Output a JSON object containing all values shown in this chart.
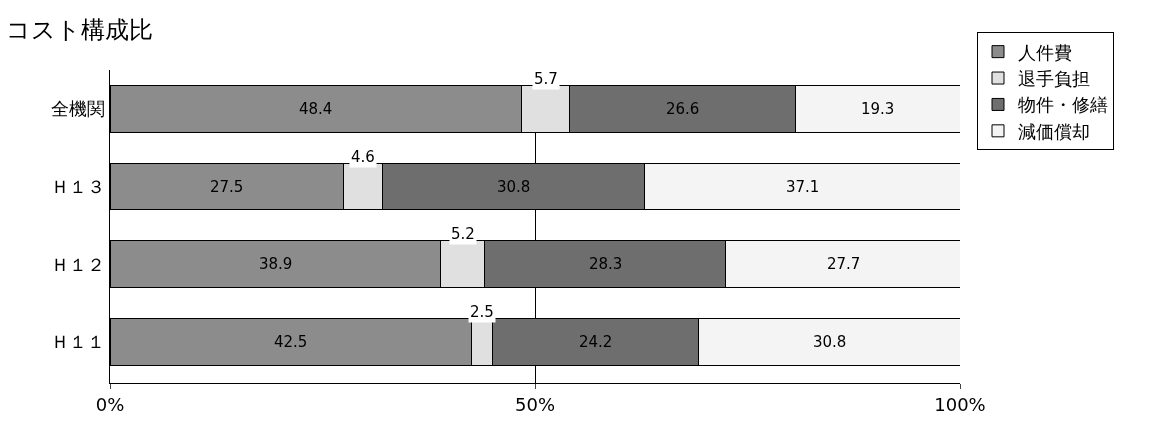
{
  "chart_data": {
    "type": "bar",
    "title": "コスト構成比",
    "orientation": "horizontal",
    "stacked": true,
    "categories": [
      "全機関",
      "Ｈ１３",
      "Ｈ１２",
      "Ｈ１１"
    ],
    "series": [
      {
        "name": "人件費",
        "color": "#8c8c8c",
        "values": [
          48.4,
          27.5,
          38.9,
          42.5
        ]
      },
      {
        "name": "退手負担",
        "color": "#e0e0e0",
        "values": [
          5.7,
          4.6,
          5.2,
          2.5
        ]
      },
      {
        "name": "物件・修繕",
        "color": "#6e6e6e",
        "values": [
          26.6,
          30.8,
          28.3,
          24.2
        ]
      },
      {
        "name": "減価償却",
        "color": "#f4f4f4",
        "values": [
          19.3,
          37.1,
          27.7,
          30.8
        ]
      }
    ],
    "xlim": [
      0,
      100
    ],
    "xticks": [
      {
        "value": 0,
        "label": "0%"
      },
      {
        "value": 50,
        "label": "50%"
      },
      {
        "value": 100,
        "label": "100%"
      }
    ],
    "grid": "x",
    "legend": "top right",
    "data_labels": true
  }
}
